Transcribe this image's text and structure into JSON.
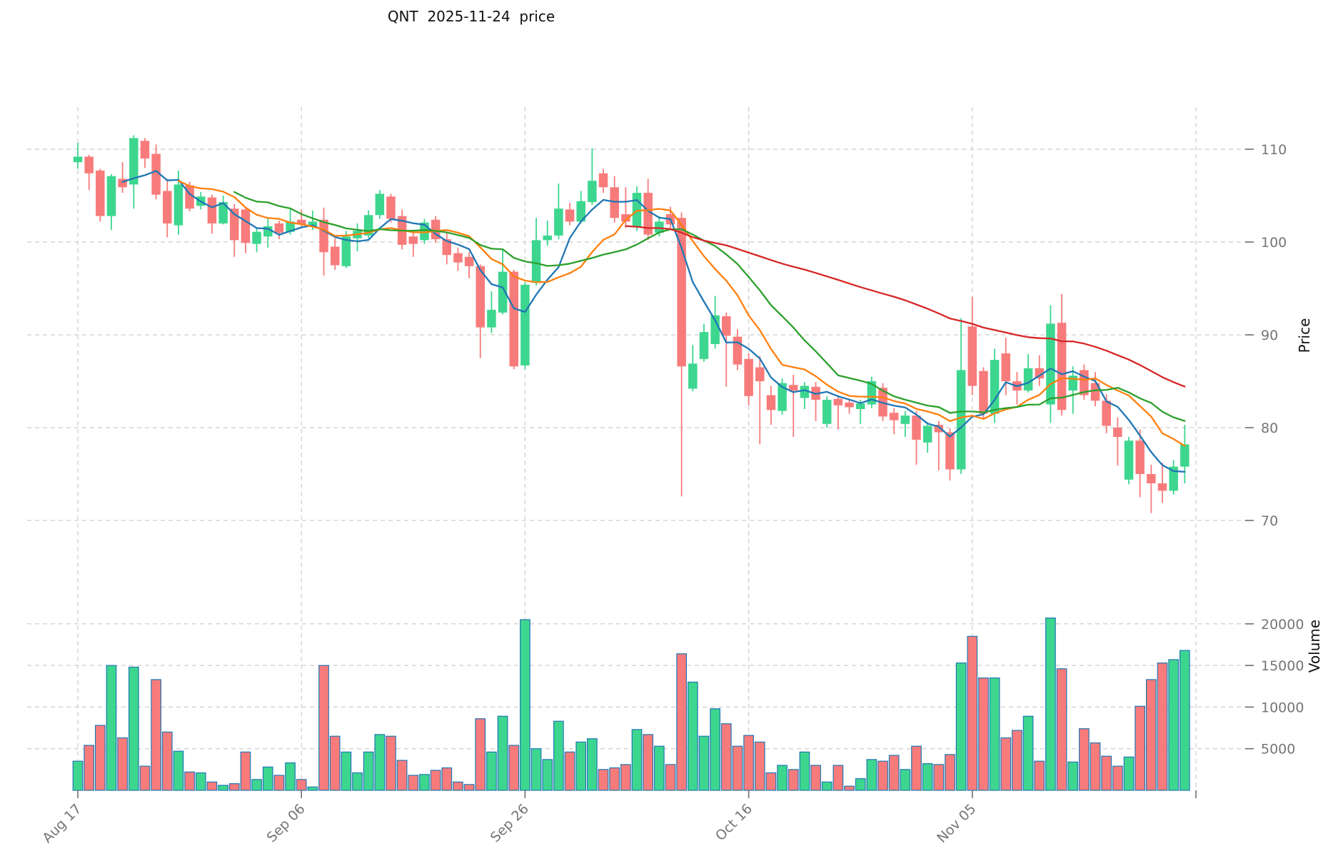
{
  "window": {
    "title": "QNT  2025-11-24  price"
  },
  "chart_data": {
    "type": "candlestick",
    "title": "QNT  2025-11-24  price",
    "legend_position": "none",
    "grid": true,
    "x_axis": {
      "tick_labels": [
        "Aug 17",
        "Sep 06",
        "Sep 26",
        "Oct 16",
        "Nov 05"
      ],
      "tick_days": [
        0,
        20,
        40,
        60,
        80
      ],
      "unlabeled_tick_day": 100
    },
    "price_axis": {
      "label": "Price",
      "ticks": [
        70,
        80,
        90,
        100,
        110
      ],
      "ylim": [
        67.5,
        115.5
      ]
    },
    "volume_axis": {
      "label": "Volume",
      "ticks": [
        5000,
        10000,
        15000,
        20000
      ],
      "ylim": [
        0,
        28000
      ]
    },
    "moving_averages": [
      {
        "name": "SMA5",
        "window": 5,
        "color": "#1f77b4"
      },
      {
        "name": "SMA10",
        "window": 10,
        "color": "#ff7f0e"
      },
      {
        "name": "SMA15",
        "window": 15,
        "color": "#2ca02c"
      },
      {
        "name": "SMA50",
        "window": 50,
        "color": "#d62728"
      }
    ],
    "colors": {
      "up": "#3dd68f",
      "down": "#f87b7b",
      "volume_edge": "#2077b4",
      "grid": "#cdcdcd",
      "tick_text": "#757575",
      "tick_mark": "#6e6e6e"
    },
    "candles_ohlcv": [
      [
        108.6,
        110.7,
        107.9,
        109.2,
        3500
      ],
      [
        109.2,
        109.4,
        105.6,
        107.4,
        5400
      ],
      [
        107.7,
        107.9,
        102.2,
        102.8,
        7800
      ],
      [
        102.8,
        107.3,
        101.3,
        107.1,
        15000
      ],
      [
        106.8,
        108.6,
        105.3,
        105.9,
        6300
      ],
      [
        106.2,
        111.5,
        103.6,
        111.2,
        14800
      ],
      [
        110.9,
        111.2,
        108.0,
        109.0,
        2900
      ],
      [
        109.5,
        110.5,
        104.6,
        105.1,
        13300
      ],
      [
        105.5,
        106.8,
        100.5,
        102.0,
        7000
      ],
      [
        101.8,
        107.7,
        100.8,
        106.2,
        4700
      ],
      [
        106.1,
        106.5,
        103.3,
        103.6,
        2200
      ],
      [
        103.9,
        105.4,
        103.5,
        104.9,
        2100
      ],
      [
        104.8,
        105.1,
        100.9,
        102.0,
        1000
      ],
      [
        102.0,
        105.0,
        101.9,
        104.3,
        600
      ],
      [
        103.6,
        104.1,
        98.4,
        100.2,
        800
      ],
      [
        103.5,
        103.7,
        98.8,
        99.9,
        4600
      ],
      [
        99.8,
        101.6,
        98.9,
        101.1,
        1300
      ],
      [
        100.6,
        102.6,
        99.4,
        101.7,
        2800
      ],
      [
        102.0,
        102.3,
        100.3,
        101.0,
        1800
      ],
      [
        101.1,
        103.5,
        100.8,
        102.2,
        3300
      ],
      [
        102.4,
        103.5,
        101.5,
        101.9,
        1300
      ],
      [
        101.7,
        103.4,
        101.3,
        102.2,
        400
      ],
      [
        102.4,
        103.7,
        96.4,
        98.9,
        15000
      ],
      [
        99.5,
        100.4,
        97.0,
        97.5,
        6500
      ],
      [
        97.4,
        101.2,
        97.2,
        100.6,
        4600
      ],
      [
        100.4,
        102.0,
        99.0,
        101.2,
        2100
      ],
      [
        100.7,
        103.4,
        100.4,
        102.9,
        4600
      ],
      [
        102.9,
        105.6,
        102.5,
        105.2,
        6700
      ],
      [
        104.9,
        105.2,
        102.1,
        102.5,
        6500
      ],
      [
        102.8,
        103.5,
        99.2,
        99.7,
        3600
      ],
      [
        100.6,
        101.3,
        98.4,
        99.8,
        1800
      ],
      [
        100.2,
        102.5,
        99.8,
        102.1,
        1900
      ],
      [
        102.4,
        102.8,
        99.9,
        100.3,
        2400
      ],
      [
        100.3,
        101.0,
        97.6,
        98.6,
        2700
      ],
      [
        98.8,
        99.4,
        96.9,
        97.8,
        1000
      ],
      [
        98.4,
        98.9,
        96.1,
        97.4,
        700
      ],
      [
        97.4,
        97.6,
        87.5,
        90.8,
        8600
      ],
      [
        90.8,
        94.7,
        90.2,
        92.7,
        4600
      ],
      [
        92.4,
        99.3,
        92.2,
        96.8,
        8900
      ],
      [
        96.8,
        97.0,
        86.3,
        86.6,
        5400
      ],
      [
        86.7,
        95.7,
        86.3,
        95.4,
        20500
      ],
      [
        95.6,
        102.6,
        95.3,
        100.2,
        5000
      ],
      [
        100.2,
        102.3,
        99.6,
        100.7,
        3700
      ],
      [
        100.7,
        106.3,
        100.3,
        103.6,
        8300
      ],
      [
        103.5,
        104.2,
        101.8,
        102.2,
        4600
      ],
      [
        102.2,
        105.5,
        102.0,
        104.4,
        5800
      ],
      [
        104.3,
        110.1,
        104.0,
        106.6,
        6200
      ],
      [
        107.4,
        107.9,
        105.3,
        105.9,
        2500
      ],
      [
        105.9,
        107.1,
        102.1,
        102.6,
        2700
      ],
      [
        103.0,
        105.9,
        101.5,
        102.2,
        3100
      ],
      [
        101.6,
        106.0,
        101.2,
        105.3,
        7300
      ],
      [
        105.3,
        106.8,
        100.2,
        100.8,
        6700
      ],
      [
        101.0,
        102.8,
        100.6,
        102.2,
        5300
      ],
      [
        103.0,
        103.8,
        101.3,
        101.9,
        3100
      ],
      [
        102.6,
        103.2,
        72.6,
        86.6,
        16400
      ],
      [
        84.2,
        88.9,
        83.9,
        86.9,
        13000
      ],
      [
        87.4,
        91.2,
        87.1,
        90.3,
        6500
      ],
      [
        89.0,
        94.2,
        88.5,
        92.1,
        9800
      ],
      [
        92.0,
        92.4,
        84.4,
        89.9,
        8000
      ],
      [
        89.8,
        90.6,
        86.2,
        86.8,
        5300
      ],
      [
        87.4,
        88.0,
        82.4,
        83.4,
        6600
      ],
      [
        86.5,
        87.7,
        78.2,
        85.0,
        5800
      ],
      [
        83.5,
        84.5,
        80.3,
        81.9,
        2100
      ],
      [
        81.8,
        85.3,
        81.4,
        84.8,
        3000
      ],
      [
        84.6,
        85.7,
        79.0,
        84.0,
        2500
      ],
      [
        83.2,
        84.9,
        82.0,
        84.5,
        4600
      ],
      [
        84.4,
        84.9,
        80.7,
        83.0,
        3000
      ],
      [
        80.4,
        83.4,
        80.0,
        83.0,
        1000
      ],
      [
        83.1,
        83.5,
        79.8,
        82.4,
        3000
      ],
      [
        82.7,
        83.1,
        81.5,
        82.2,
        500
      ],
      [
        82.0,
        83.0,
        80.4,
        82.6,
        1400
      ],
      [
        82.5,
        85.5,
        82.1,
        85.0,
        3700
      ],
      [
        84.3,
        84.8,
        80.7,
        81.2,
        3500
      ],
      [
        81.6,
        82.1,
        79.3,
        80.8,
        4200
      ],
      [
        80.4,
        81.8,
        79.0,
        81.3,
        2500
      ],
      [
        81.3,
        81.8,
        76.0,
        78.7,
        5300
      ],
      [
        78.4,
        80.6,
        77.3,
        80.2,
        3200
      ],
      [
        80.3,
        80.7,
        75.4,
        79.5,
        3100
      ],
      [
        79.5,
        79.9,
        74.3,
        75.5,
        4300
      ],
      [
        75.5,
        91.8,
        75.0,
        86.2,
        15300
      ],
      [
        90.9,
        94.1,
        83.5,
        84.5,
        18500
      ],
      [
        86.1,
        86.5,
        81.0,
        81.5,
        13500
      ],
      [
        81.5,
        88.5,
        80.5,
        87.3,
        13500
      ],
      [
        88.0,
        89.7,
        83.5,
        85.0,
        6300
      ],
      [
        85.0,
        86.0,
        82.5,
        84.0,
        7200
      ],
      [
        84.0,
        87.9,
        83.8,
        86.4,
        8900
      ],
      [
        86.4,
        87.8,
        84.5,
        85.3,
        3500
      ],
      [
        82.5,
        93.2,
        80.5,
        91.2,
        20700
      ],
      [
        91.3,
        94.4,
        81.3,
        81.9,
        14600
      ],
      [
        84.0,
        86.6,
        81.5,
        85.6,
        3400
      ],
      [
        86.2,
        86.8,
        83.0,
        83.5,
        7400
      ],
      [
        84.8,
        86.0,
        82.3,
        82.9,
        5700
      ],
      [
        82.9,
        83.6,
        79.4,
        80.2,
        4100
      ],
      [
        80.0,
        81.1,
        75.9,
        79.0,
        2900
      ],
      [
        74.4,
        79.0,
        73.9,
        78.6,
        4000
      ],
      [
        78.6,
        79.8,
        72.5,
        75.0,
        10100
      ],
      [
        75.0,
        76.0,
        70.8,
        74.0,
        13300
      ],
      [
        74.0,
        76.2,
        71.9,
        73.2,
        15300
      ],
      [
        73.2,
        76.5,
        72.8,
        75.8,
        15700
      ],
      [
        75.8,
        80.3,
        74.0,
        78.2,
        16800
      ]
    ]
  }
}
